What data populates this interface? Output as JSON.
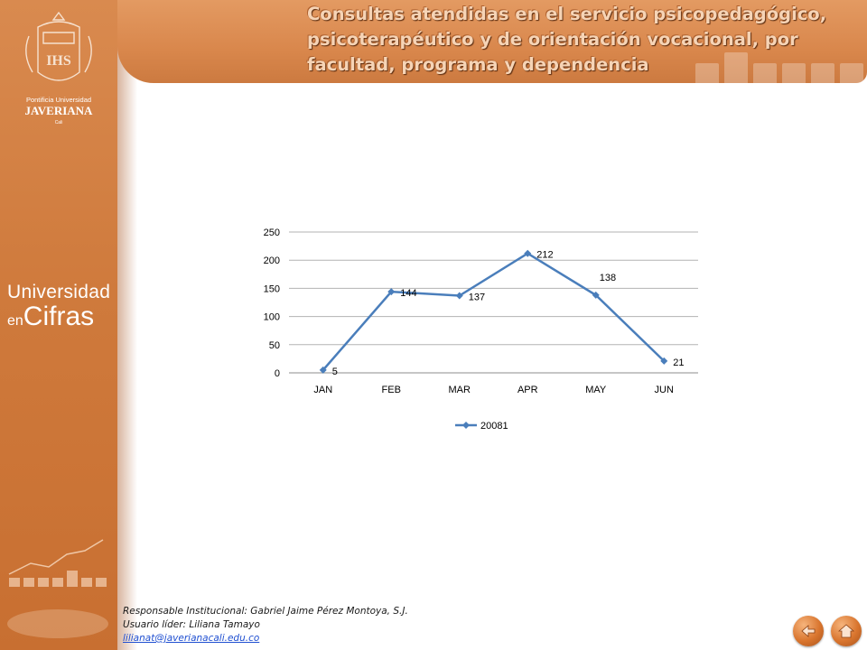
{
  "header": {
    "title": "Consultas atendidas en el servicio psicopedagógico, psicoterapéutico y de orientación vocacional, por facultad, programa y dependencia"
  },
  "sidebar": {
    "logo_text_1": "Pontificia Universidad",
    "logo_text_2": "JAVERIANA",
    "logo_text_3": "Cali",
    "logo_monogram": "IHS",
    "brand_line1": "Universidad",
    "brand_line2a": "en",
    "brand_line2b": "Cifras"
  },
  "footer": {
    "line1": "Responsable Institucional: Gabriel Jaime Pérez Montoya, S.J.",
    "line2": "Usuario líder: Liliana Tamayo",
    "email": "lilianat@javerianacali.edu.co"
  },
  "nav": {
    "back_icon": "back-arrow-icon",
    "home_icon": "home-icon"
  },
  "colors": {
    "series": "#4a7ebb",
    "sidebar": "#cf7a3c"
  },
  "chart_data": {
    "type": "line",
    "categories": [
      "JAN",
      "FEB",
      "MAR",
      "APR",
      "MAY",
      "JUN"
    ],
    "series": [
      {
        "name": "20081",
        "values": [
          5,
          144,
          137,
          212,
          138,
          21
        ]
      }
    ],
    "yticks": [
      "0",
      "50",
      "100",
      "150",
      "200",
      "250"
    ],
    "ylim": [
      0,
      250
    ],
    "grid": true,
    "legend": "bottom"
  }
}
